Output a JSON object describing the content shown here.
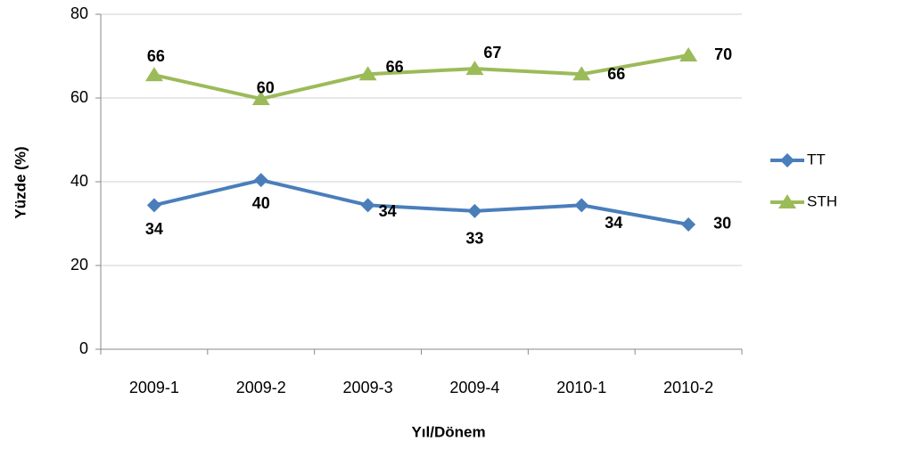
{
  "chart_data": {
    "type": "line",
    "categories": [
      "2009-1",
      "2009-2",
      "2009-3",
      "2009-4",
      "2010-1",
      "2010-2"
    ],
    "series": [
      {
        "name": "TT",
        "color": "#4a7ebb",
        "marker": "diamond",
        "values": [
          34.4,
          40.4,
          34.4,
          33.0,
          34.4,
          29.8
        ],
        "value_labels": [
          "34",
          "40",
          "34",
          "33",
          "34",
          "30"
        ]
      },
      {
        "name": "STH",
        "color": "#9bbb59",
        "marker": "triangle",
        "values": [
          65.5,
          59.8,
          65.7,
          67.0,
          65.7,
          70.2
        ],
        "value_labels": [
          "66",
          "60",
          "66",
          "67",
          "66",
          "70"
        ]
      }
    ],
    "xlabel": "Yıl/Dönem",
    "ylabel": "Yüzde  (%)",
    "ylim": [
      0,
      80
    ],
    "yticks": [
      0,
      20,
      40,
      60,
      80
    ],
    "grid": true,
    "legend": "right"
  }
}
